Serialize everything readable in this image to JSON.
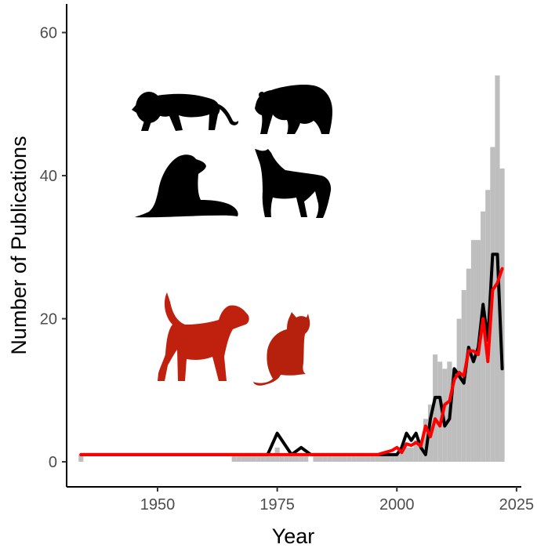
{
  "chart_data": {
    "type": "bar",
    "xlabel": "Year",
    "ylabel": "Number of Publications",
    "xlim": [
      1931,
      2026
    ],
    "ylim": [
      -3.5,
      64
    ],
    "x_ticks": [
      1950,
      1975,
      2000,
      2025
    ],
    "y_ticks": [
      0,
      20,
      40,
      60
    ],
    "grid": false,
    "colors": {
      "bars": "#bebebe",
      "black_line": "#000000",
      "red_line": "#ff0000",
      "red_icons": "#c0200e",
      "black_icons": "#000000"
    },
    "icons": {
      "black": [
        "lion-icon",
        "bear-icon",
        "sea-lion-icon",
        "wolf-icon"
      ],
      "red": [
        "dog-icon",
        "cat-icon"
      ]
    },
    "series": [
      {
        "type": "bar",
        "x": [
          1934,
          1966,
          1967,
          1968,
          1969,
          1970,
          1971,
          1972,
          1973,
          1974,
          1975,
          1976,
          1977,
          1978,
          1979,
          1980,
          1981,
          1983,
          1984,
          1985,
          1986,
          1987,
          1988,
          1989,
          1990,
          1991,
          1992,
          1993,
          1994,
          1995,
          1996,
          1997,
          1998,
          1999,
          2000,
          2001,
          2002,
          2003,
          2004,
          2005,
          2006,
          2007,
          2008,
          2009,
          2010,
          2011,
          2012,
          2013,
          2014,
          2015,
          2016,
          2017,
          2018,
          2019,
          2020,
          2021,
          2022
        ],
        "values": [
          1,
          1,
          1,
          1,
          1,
          1,
          1,
          1,
          1,
          1,
          2,
          1,
          1,
          1,
          1,
          1,
          1,
          1,
          1,
          1,
          1,
          1,
          1,
          1,
          1,
          1,
          1,
          1,
          1,
          1,
          1,
          1,
          1,
          1,
          1,
          2,
          2,
          2,
          3,
          3,
          6,
          8,
          15,
          14,
          13,
          14,
          13,
          20,
          24,
          27,
          31,
          31,
          35,
          38,
          44,
          54,
          41
        ]
      },
      {
        "type": "line",
        "x": [
          1934,
          1973,
          1975,
          1978,
          1980,
          1982,
          1994,
          1995,
          1996,
          1997,
          1998,
          1999,
          2000,
          2001,
          2002,
          2003,
          2004,
          2005,
          2006,
          2007,
          2008,
          2009,
          2010,
          2011,
          2012,
          2013,
          2014,
          2015,
          2016,
          2017,
          2018,
          2019,
          2020,
          2021,
          2022
        ],
        "values": [
          1,
          1,
          4,
          1,
          2,
          1,
          1,
          1,
          1,
          1,
          1,
          1,
          1,
          2,
          4,
          3,
          4,
          2,
          1,
          6,
          9,
          9,
          5,
          6,
          13,
          12,
          11,
          16,
          14,
          16,
          22,
          17,
          29,
          29,
          13
        ]
      },
      {
        "type": "line",
        "x": [
          1934,
          1996,
          1997,
          1998,
          1999,
          2000,
          2001,
          2002,
          2003,
          2004,
          2005,
          2006,
          2007,
          2008,
          2009,
          2010,
          2011,
          2012,
          2013,
          2014,
          2015,
          2016,
          2017,
          2018,
          2019,
          2020,
          2021,
          2022
        ],
        "values": [
          1,
          1,
          1.2,
          1.4,
          1.6,
          2,
          1.3,
          2.5,
          2.3,
          2.7,
          2.2,
          5,
          3.5,
          6,
          5,
          8,
          8.5,
          11.5,
          12.5,
          12,
          15.5,
          15.5,
          15,
          20,
          14,
          24,
          25,
          27
        ]
      }
    ]
  }
}
